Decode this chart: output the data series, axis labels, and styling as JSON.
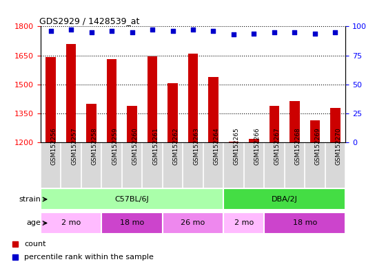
{
  "title": "GDS2929 / 1428539_at",
  "samples": [
    "GSM152256",
    "GSM152257",
    "GSM152258",
    "GSM152259",
    "GSM152260",
    "GSM152261",
    "GSM152262",
    "GSM152263",
    "GSM152264",
    "GSM152265",
    "GSM152266",
    "GSM152267",
    "GSM152268",
    "GSM152269",
    "GSM152270"
  ],
  "counts": [
    1640,
    1710,
    1400,
    1630,
    1390,
    1645,
    1505,
    1660,
    1540,
    1205,
    1220,
    1390,
    1415,
    1315,
    1380
  ],
  "percentiles": [
    96,
    97,
    95,
    96,
    95,
    97,
    96,
    97,
    96,
    93,
    94,
    95,
    95,
    94,
    95
  ],
  "bar_color": "#cc0000",
  "dot_color": "#0000cc",
  "ylim_left": [
    1200,
    1800
  ],
  "ylim_right": [
    0,
    100
  ],
  "yticks_left": [
    1200,
    1350,
    1500,
    1650,
    1800
  ],
  "yticks_right": [
    0,
    25,
    50,
    75,
    100
  ],
  "strain_groups": [
    {
      "label": "C57BL/6J",
      "start": 0,
      "end": 8,
      "color": "#aaffaa"
    },
    {
      "label": "DBA/2J",
      "start": 9,
      "end": 14,
      "color": "#44dd44"
    }
  ],
  "age_groups": [
    {
      "label": "2 mo",
      "start": 0,
      "end": 2,
      "color": "#ffbbff"
    },
    {
      "label": "18 mo",
      "start": 3,
      "end": 5,
      "color": "#cc44cc"
    },
    {
      "label": "26 mo",
      "start": 6,
      "end": 8,
      "color": "#ee88ee"
    },
    {
      "label": "2 mo",
      "start": 9,
      "end": 10,
      "color": "#ffbbff"
    },
    {
      "label": "18 mo",
      "start": 11,
      "end": 14,
      "color": "#cc44cc"
    }
  ],
  "legend_items": [
    {
      "label": "count",
      "color": "#cc0000"
    },
    {
      "label": "percentile rank within the sample",
      "color": "#0000cc"
    }
  ],
  "bar_bottom": 1200,
  "bar_width": 0.5
}
